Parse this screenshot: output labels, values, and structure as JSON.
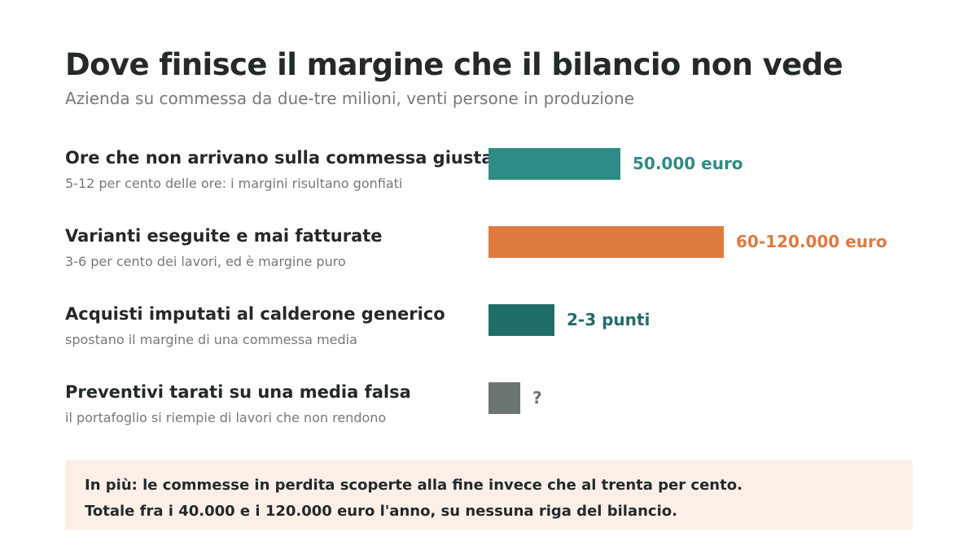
{
  "title": "Dove finisce il margine che il bilancio non vede",
  "subtitle": "Azienda su commessa da due-tre milioni, venti persone in produzione",
  "chart_data": {
    "type": "bar",
    "orientation": "horizontal",
    "categories": [
      "Ore che non arrivano sulla commessa giusta",
      "Varianti eseguite e mai fatturate",
      "Acquisti imputati al calderone generico",
      "Preventivi tarati su una media falsa"
    ],
    "rows": [
      {
        "label": "Ore che non arrivano sulla commessa giusta",
        "sublabel": "5-12 per cento delle ore: i margini risultano gonfiati",
        "value_label": "50.000 euro",
        "relative_value": 0.56,
        "color": "#2e8c87"
      },
      {
        "label": "Varianti eseguite e mai fatturate",
        "sublabel": "3-6 per cento dei lavori, ed è margine puro",
        "value_label": "60-120.000 euro",
        "relative_value": 1.0,
        "color": "#e07b3f"
      },
      {
        "label": "Acquisti imputati al calderone generico",
        "sublabel": "spostano il margine di una commessa media",
        "value_label": "2-3 punti",
        "relative_value": 0.28,
        "color": "#1f6e6a"
      },
      {
        "label": "Preventivi tarati su una media falsa",
        "sublabel": "il portafoglio si riempie di lavori che non rendono",
        "value_label": "?",
        "relative_value": 0.135,
        "color": "#6c7571"
      }
    ]
  },
  "footer": {
    "line1": "In più: le commesse in perdita scoperte alla fine invece che al trenta per cento.",
    "line2": "Totale fra i 40.000 e i 120.000 euro l'anno, su nessuna riga del bilancio.",
    "background": "#fcefe7"
  }
}
